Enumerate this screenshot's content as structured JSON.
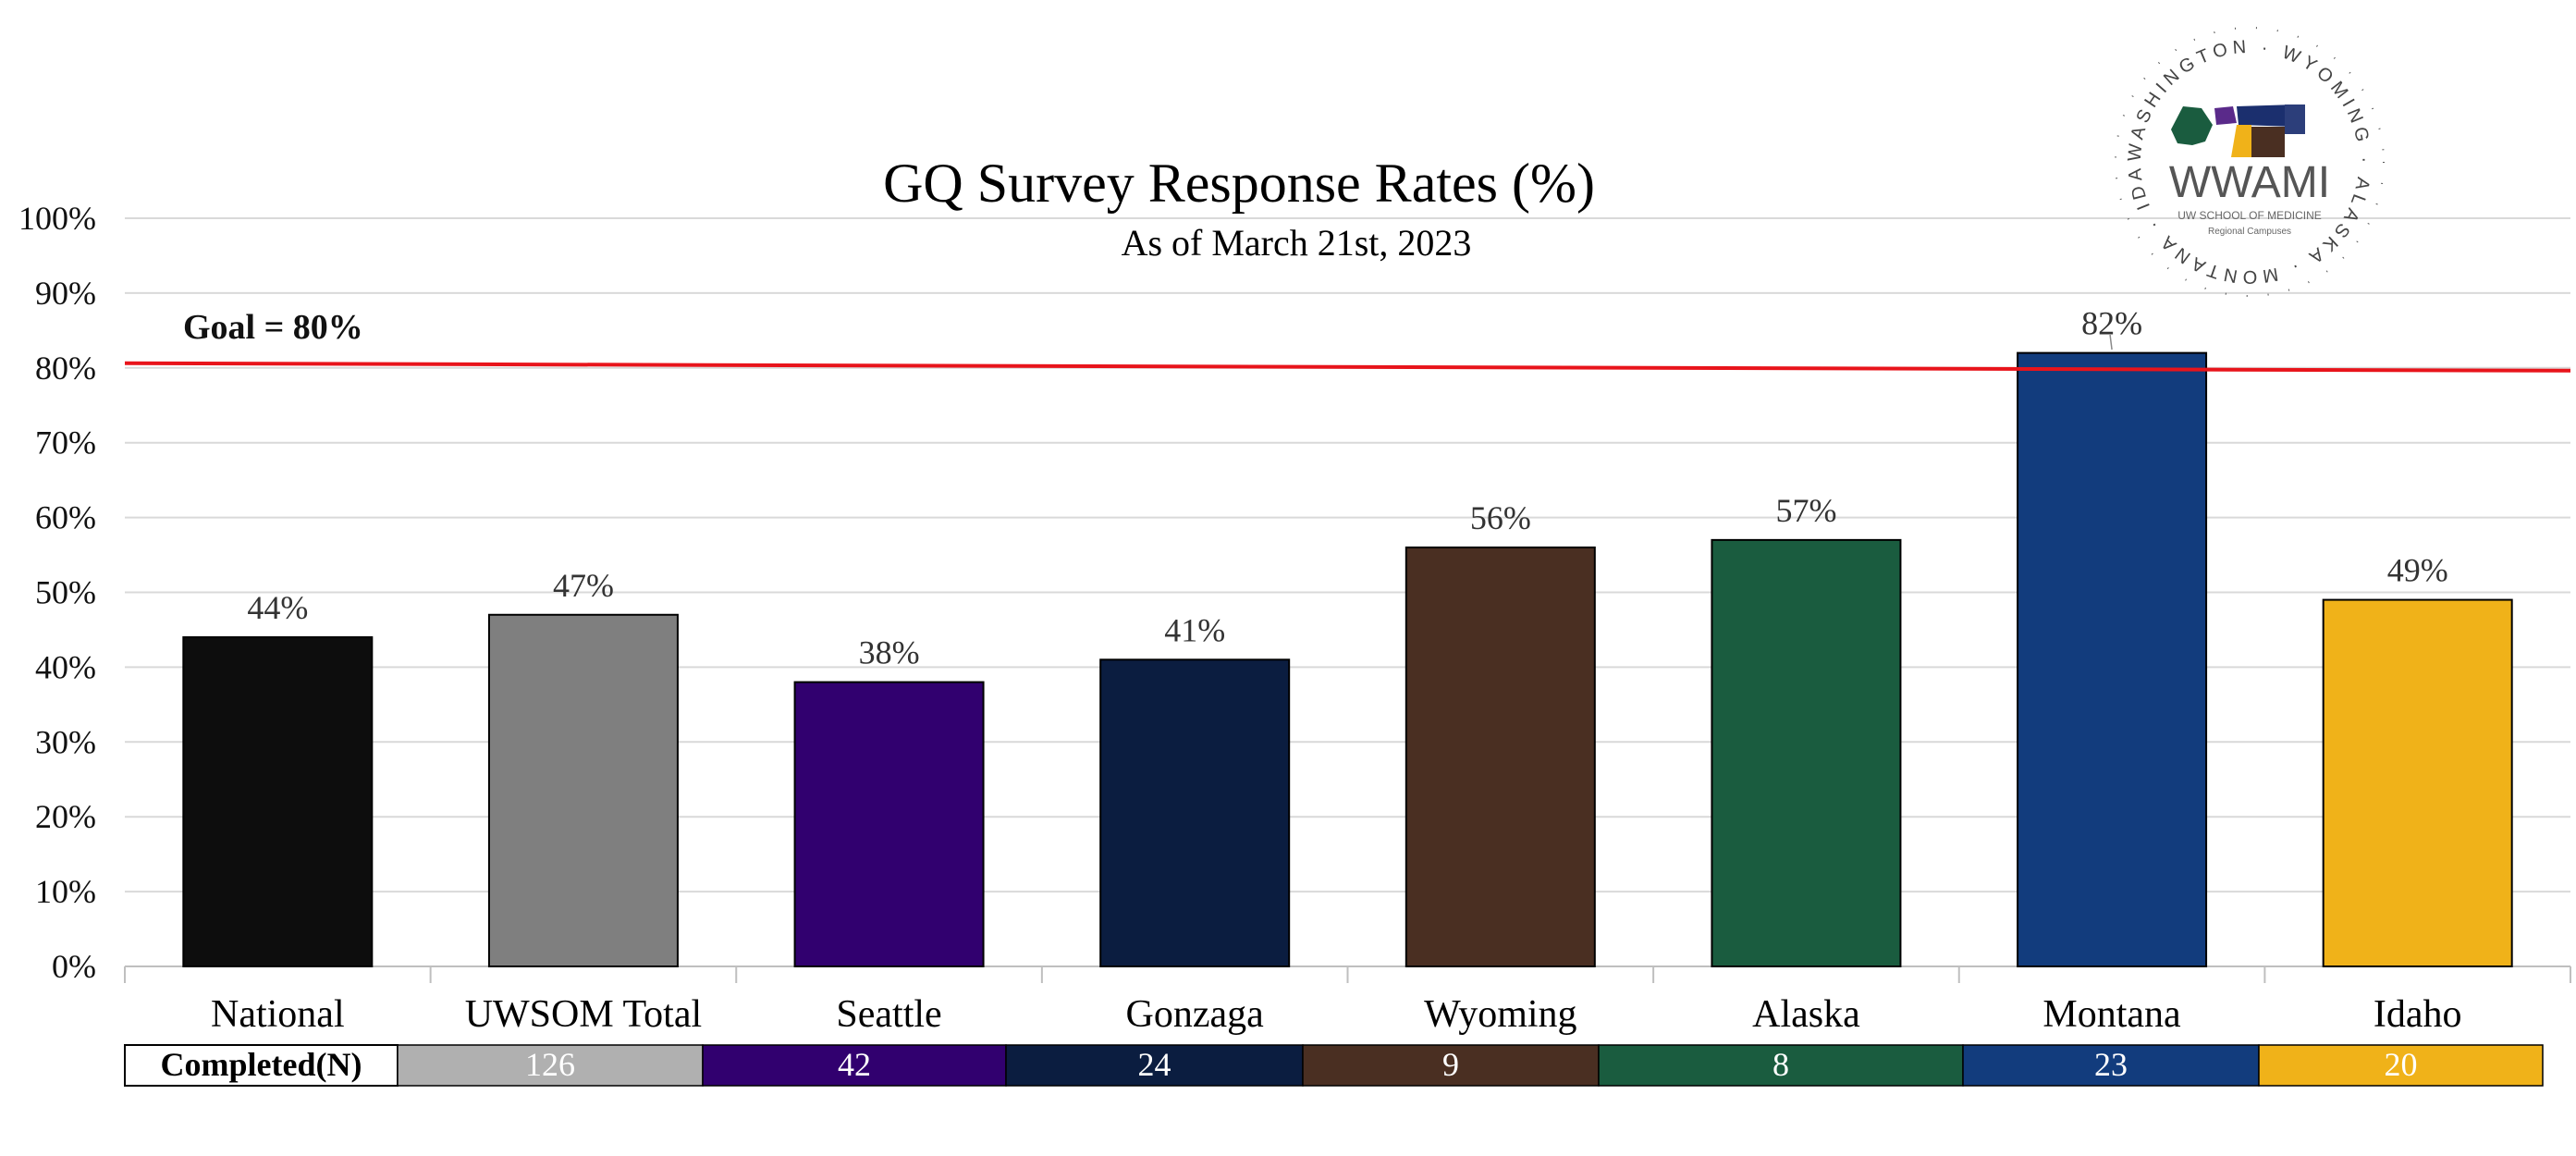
{
  "chart_data": {
    "type": "bar",
    "title": "GQ Survey Response Rates (%)",
    "subtitle": "As of March 21st, 2023",
    "categories": [
      "National",
      "UWSOM Total",
      "Seattle",
      "Gonzaga",
      "Wyoming",
      "Alaska",
      "Montana",
      "Idaho"
    ],
    "values": [
      44,
      47,
      38,
      41,
      56,
      57,
      82,
      49
    ],
    "data_labels": [
      "44%",
      "47%",
      "38%",
      "41%",
      "56%",
      "57%",
      "82%",
      "49%"
    ],
    "bar_colors": [
      "#0d0d0d",
      "#7f7f7f",
      "#31006f",
      "#0b1d40",
      "#4a2f22",
      "#1a5c3f",
      "#123c7d",
      "#f0b219"
    ],
    "ylim": [
      0,
      100
    ],
    "yticks": [
      "0%",
      "10%",
      "20%",
      "30%",
      "40%",
      "50%",
      "60%",
      "70%",
      "80%",
      "90%",
      "100%"
    ],
    "grid": true,
    "goal": {
      "label": "Goal = 80%",
      "value": 80,
      "color": "#e8141b"
    },
    "completed_table": {
      "header": "Completed(N)",
      "values": [
        "126",
        "42",
        "24",
        "9",
        "8",
        "23",
        "20"
      ],
      "colors": [
        "#b0b0b0",
        "#31006f",
        "#0b1d40",
        "#4a2f22",
        "#1a5c3f",
        "#123c7d",
        "#f0b219"
      ]
    }
  },
  "logo": {
    "name": "WWAMI",
    "subline1": "UW SCHOOL OF MEDICINE",
    "subline2": "Regional Campuses",
    "ring_text": [
      "WASHINGTON",
      "WYOMING",
      "ALASKA",
      "MONTANA",
      "IDAHO"
    ]
  }
}
